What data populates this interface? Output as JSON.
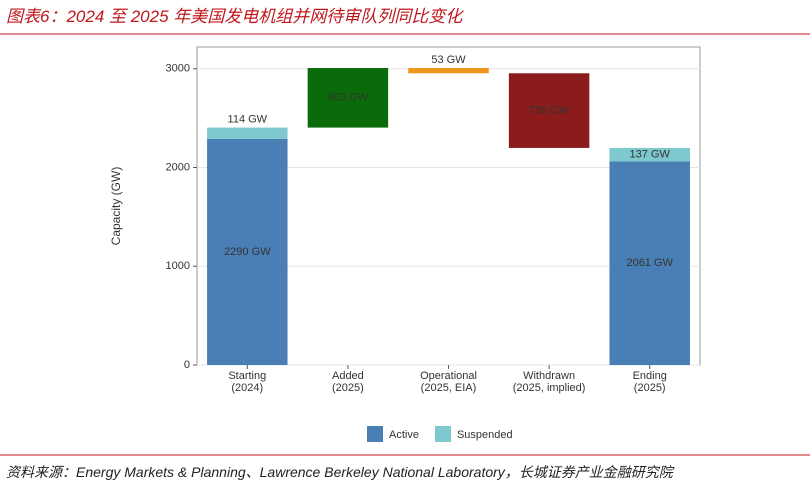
{
  "chart_data": {
    "type": "waterfall",
    "title": "图表6：2024 至 2025 年美国发电机组并网待审队列同比变化",
    "y_label": "Capacity (GW)",
    "categories": [
      [
        "Starting",
        "(2024)"
      ],
      [
        "Added",
        "(2025)"
      ],
      [
        "Operational",
        "(2025, EIA)"
      ],
      [
        "Withdrawn",
        "(2025, implied)"
      ],
      [
        "Ending",
        "(2025)"
      ]
    ],
    "series": [
      {
        "name": "Active",
        "color": "#4a7fb5",
        "values": [
          2290,
          null,
          null,
          null,
          2061
        ],
        "value_labels": [
          "2290 GW",
          null,
          null,
          null,
          "2061 GW"
        ]
      },
      {
        "name": "Suspended",
        "color": "#7ec8d0",
        "values": [
          114,
          null,
          null,
          null,
          137
        ],
        "value_labels": [
          "114 GW",
          null,
          null,
          null,
          "137 GW"
        ]
      }
    ],
    "changes": {
      "values": [
        null,
        603,
        -53,
        -756,
        null
      ],
      "colors": [
        null,
        "#0a6b0a",
        "#f0961e",
        "#8c1c1c",
        null
      ],
      "value_labels": [
        null,
        "603 GW",
        "53 GW",
        "756 GW",
        null
      ]
    },
    "ylim": [
      0,
      3220
    ],
    "yticks": [
      0,
      1000,
      2000,
      3000
    ],
    "grid": true
  },
  "source": "资料来源：Energy Markets & Planning、Lawrence Berkeley National Laboratory，长城证券产业金融研究院"
}
